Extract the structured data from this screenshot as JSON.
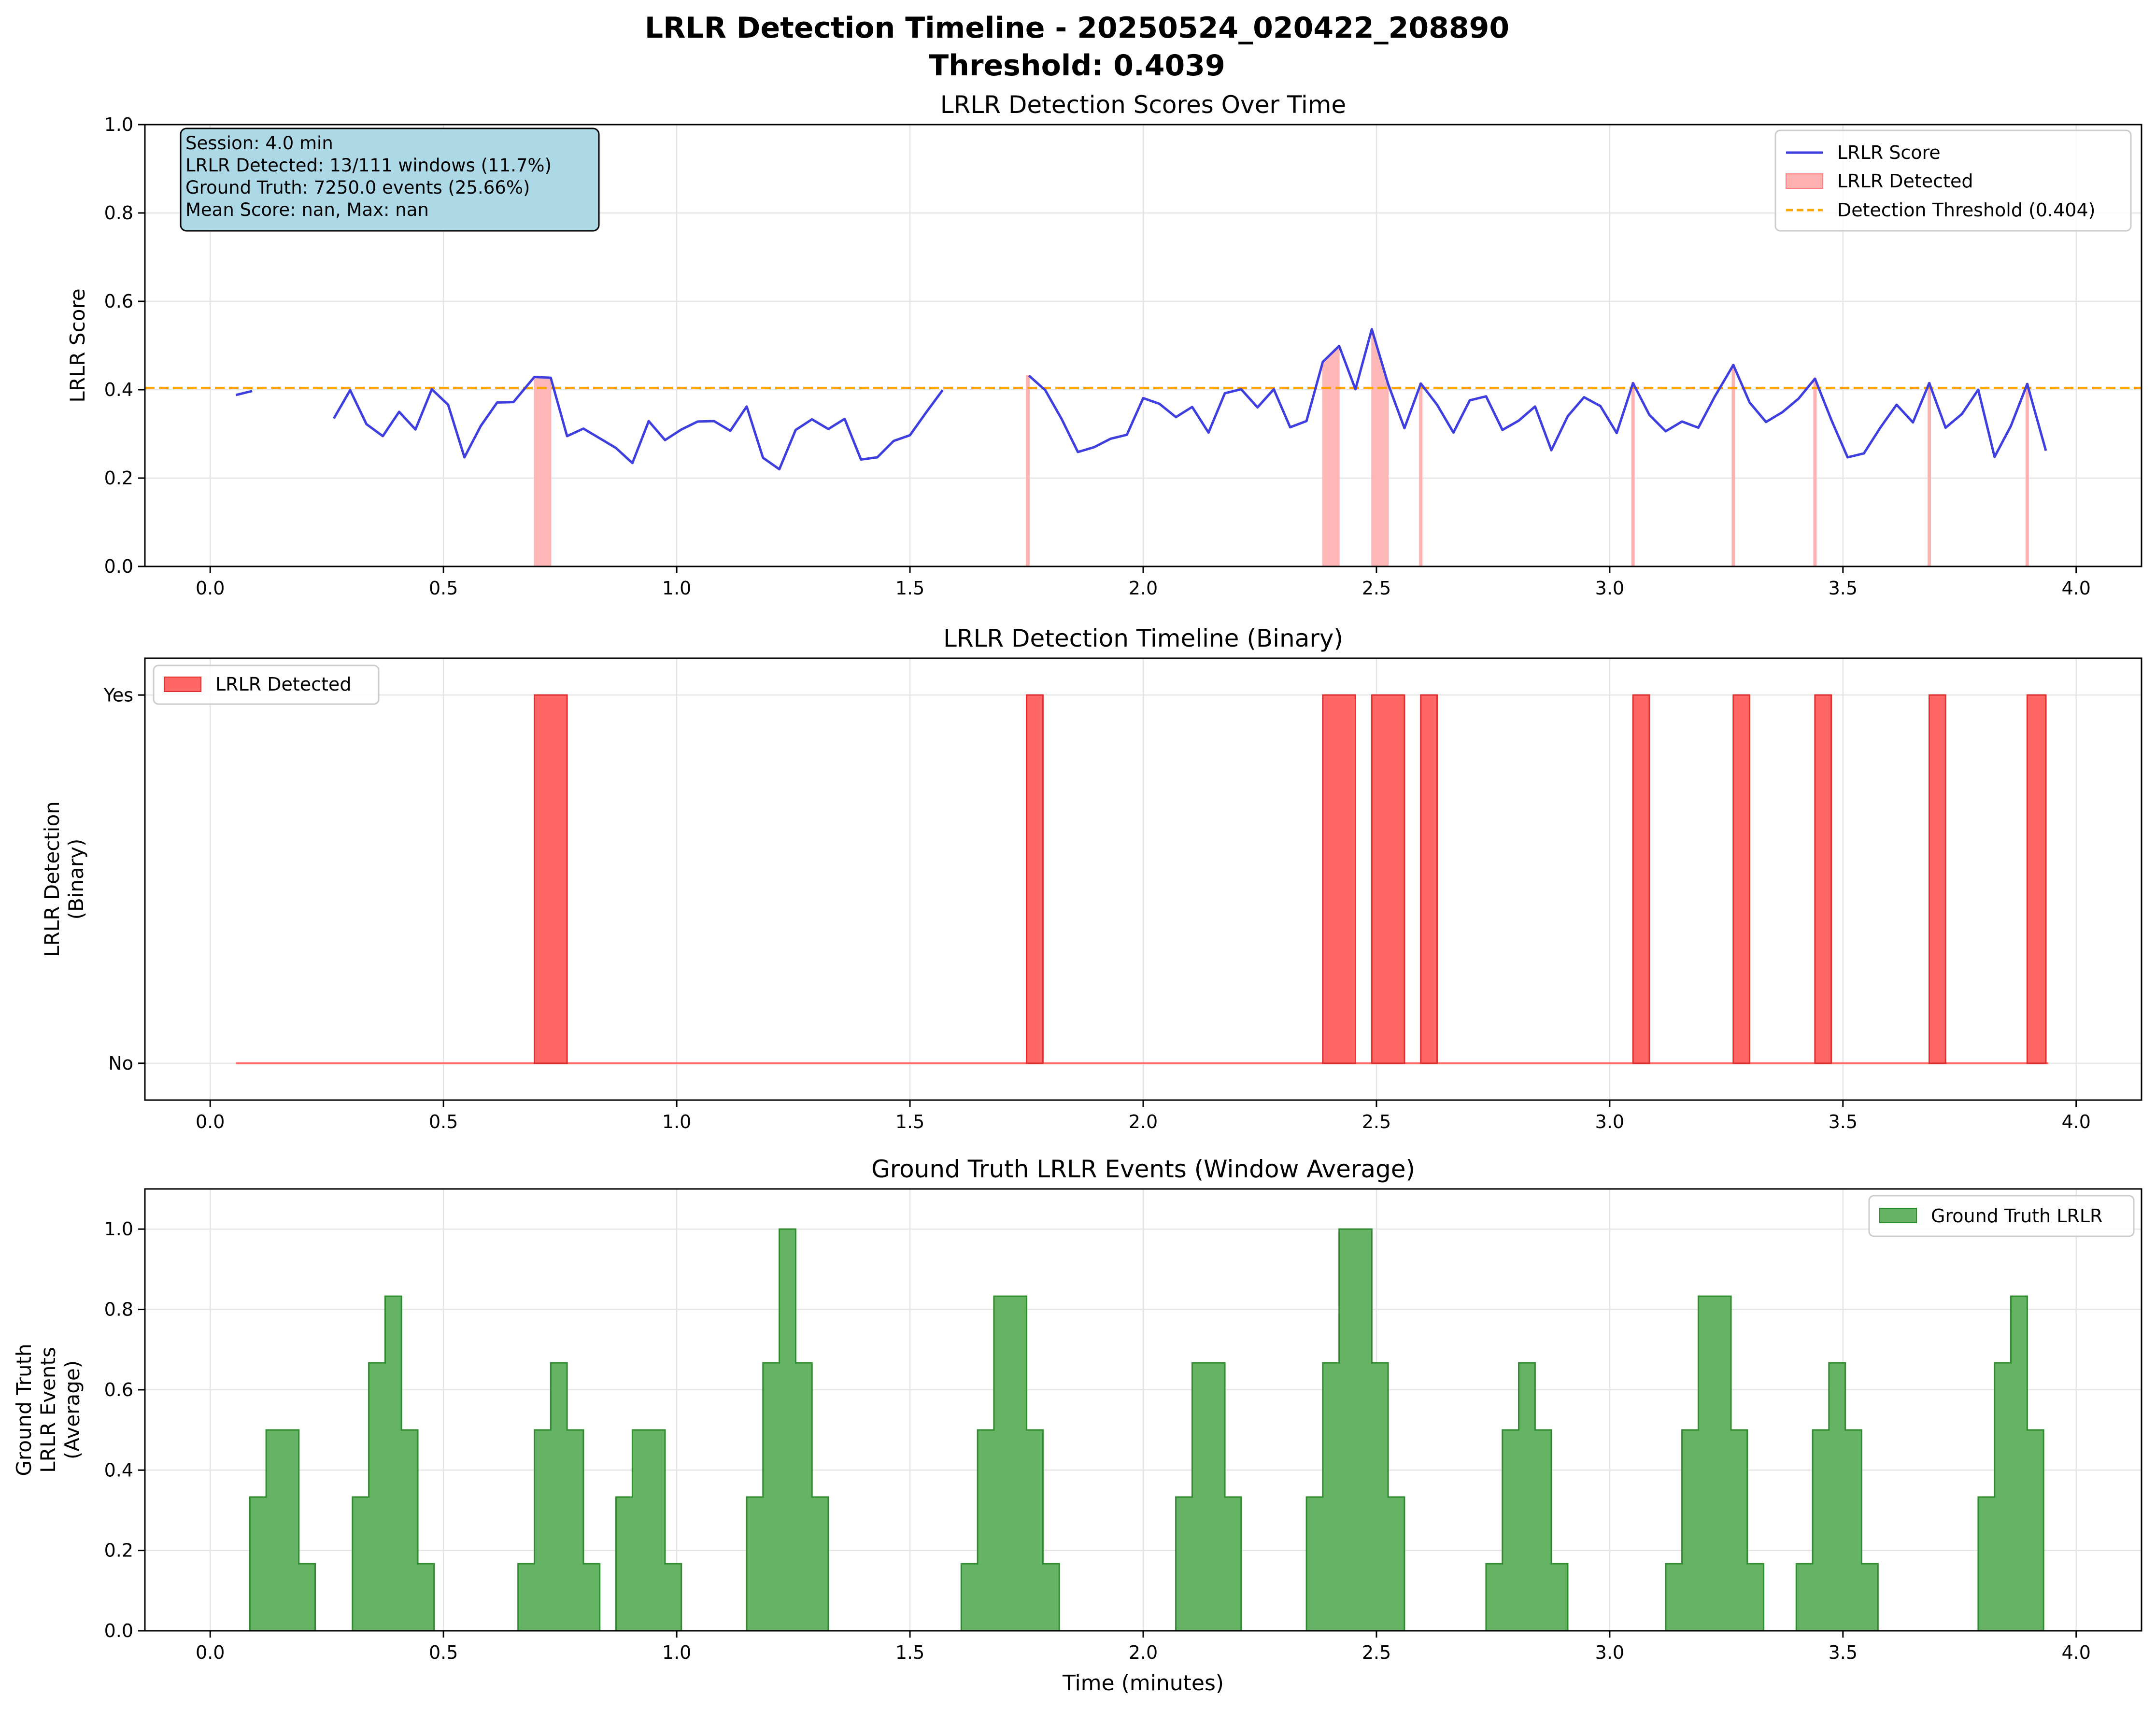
{
  "figure": {
    "title_line1": "LRLR Detection Timeline - 20250524_020422_208890",
    "title_line2": "Threshold: 0.4039"
  },
  "colors": {
    "score_line": "#3f3fe0",
    "detected_fill": "#ff6666",
    "detected_light": "#ffb0b0",
    "threshold": "#ffa500",
    "ground_truth": "#66b366",
    "ground_truth_edge": "#2e8b2e",
    "info_box": "#add8e6",
    "grid": "#e5e5e5"
  },
  "chart_data": [
    {
      "type": "line",
      "title": "LRLR Detection Scores Over Time",
      "xlabel": "",
      "ylabel": "LRLR Score",
      "xlim": [
        -0.14,
        4.14
      ],
      "ylim": [
        0,
        1.0
      ],
      "xticks": [
        0.0,
        0.5,
        1.0,
        1.5,
        2.0,
        2.5,
        3.0,
        3.5,
        4.0
      ],
      "xtick_labels": [
        "0.0",
        "0.5",
        "1.0",
        "1.5",
        "2.0",
        "2.5",
        "3.0",
        "3.5",
        "4.0"
      ],
      "yticks": [
        0.0,
        0.2,
        0.4,
        0.6,
        0.8,
        1.0
      ],
      "ytick_labels": [
        "0.0",
        "0.2",
        "0.4",
        "0.6",
        "0.8",
        "1.0"
      ],
      "grid": true,
      "legend_position": "top-right",
      "threshold": 0.404,
      "info_box": [
        "Session: 4.0 min",
        "LRLR Detected: 13/111 windows (11.7%)",
        "Ground Truth: 7250.0 events (25.66%)",
        "Mean Score: nan, Max: nan"
      ],
      "legend": [
        "LRLR Score",
        "LRLR Detected",
        "Detection Threshold (0.404)"
      ],
      "segments": [
        [
          [
            0.055,
            0.388
          ],
          [
            0.09,
            0.397
          ]
        ],
        [
          [
            0.265,
            0.335
          ],
          [
            0.3,
            0.399
          ],
          [
            0.335,
            0.322
          ],
          [
            0.37,
            0.295
          ],
          [
            0.405,
            0.35
          ],
          [
            0.44,
            0.31
          ],
          [
            0.475,
            0.401
          ],
          [
            0.51,
            0.366
          ],
          [
            0.545,
            0.247
          ],
          [
            0.58,
            0.318
          ],
          [
            0.615,
            0.371
          ],
          [
            0.65,
            0.372
          ],
          [
            0.695,
            0.429
          ],
          [
            0.73,
            0.427
          ],
          [
            0.765,
            0.295
          ],
          [
            0.8,
            0.312
          ],
          [
            0.835,
            0.29
          ],
          [
            0.87,
            0.268
          ],
          [
            0.905,
            0.234
          ],
          [
            0.94,
            0.329
          ],
          [
            0.975,
            0.286
          ],
          [
            1.01,
            0.31
          ],
          [
            1.045,
            0.328
          ],
          [
            1.08,
            0.329
          ],
          [
            1.115,
            0.307
          ],
          [
            1.15,
            0.362
          ],
          [
            1.185,
            0.246
          ],
          [
            1.22,
            0.22
          ],
          [
            1.255,
            0.309
          ],
          [
            1.29,
            0.333
          ],
          [
            1.325,
            0.311
          ],
          [
            1.36,
            0.334
          ],
          [
            1.395,
            0.242
          ],
          [
            1.43,
            0.247
          ],
          [
            1.465,
            0.284
          ],
          [
            1.5,
            0.297
          ],
          [
            1.535,
            0.349
          ],
          [
            1.57,
            0.399
          ]
        ],
        [
          [
            1.755,
            0.432
          ],
          [
            1.79,
            0.399
          ],
          [
            1.825,
            0.334
          ],
          [
            1.86,
            0.259
          ],
          [
            1.895,
            0.27
          ],
          [
            1.93,
            0.289
          ],
          [
            1.965,
            0.298
          ],
          [
            2.0,
            0.381
          ],
          [
            2.035,
            0.368
          ],
          [
            2.07,
            0.338
          ],
          [
            2.105,
            0.361
          ],
          [
            2.14,
            0.303
          ],
          [
            2.175,
            0.392
          ],
          [
            2.21,
            0.401
          ],
          [
            2.245,
            0.36
          ],
          [
            2.28,
            0.401
          ],
          [
            2.315,
            0.315
          ],
          [
            2.35,
            0.329
          ],
          [
            2.385,
            0.463
          ],
          [
            2.42,
            0.499
          ],
          [
            2.455,
            0.401
          ],
          [
            2.49,
            0.537
          ],
          [
            2.525,
            0.413
          ],
          [
            2.56,
            0.313
          ],
          [
            2.595,
            0.414
          ],
          [
            2.63,
            0.366
          ],
          [
            2.665,
            0.303
          ],
          [
            2.7,
            0.376
          ],
          [
            2.735,
            0.385
          ],
          [
            2.77,
            0.309
          ],
          [
            2.805,
            0.33
          ],
          [
            2.84,
            0.362
          ],
          [
            2.875,
            0.263
          ],
          [
            2.91,
            0.34
          ],
          [
            2.945,
            0.383
          ],
          [
            2.98,
            0.363
          ],
          [
            3.015,
            0.302
          ],
          [
            3.05,
            0.415
          ],
          [
            3.085,
            0.343
          ],
          [
            3.12,
            0.306
          ],
          [
            3.155,
            0.328
          ],
          [
            3.19,
            0.314
          ],
          [
            3.225,
            0.384
          ],
          [
            3.265,
            0.456
          ],
          [
            3.3,
            0.371
          ],
          [
            3.335,
            0.327
          ],
          [
            3.37,
            0.349
          ],
          [
            3.405,
            0.38
          ],
          [
            3.44,
            0.425
          ],
          [
            3.475,
            0.332
          ],
          [
            3.51,
            0.247
          ],
          [
            3.545,
            0.256
          ],
          [
            3.58,
            0.314
          ],
          [
            3.615,
            0.366
          ],
          [
            3.65,
            0.326
          ],
          [
            3.685,
            0.415
          ],
          [
            3.72,
            0.314
          ],
          [
            3.755,
            0.345
          ],
          [
            3.79,
            0.4
          ],
          [
            3.825,
            0.248
          ],
          [
            3.86,
            0.318
          ],
          [
            3.895,
            0.413
          ],
          [
            3.935,
            0.262
          ]
        ]
      ],
      "detected_regions": [
        {
          "x0": 0.695,
          "x1": 0.73,
          "y0": 0.429,
          "y1": 0.427
        },
        {
          "x0": 1.75,
          "x1": 1.755,
          "y0": 0.432,
          "y1": 0.432
        },
        {
          "x0": 2.385,
          "x1": 2.42,
          "y0": 0.463,
          "y1": 0.499
        },
        {
          "x0": 2.49,
          "x1": 2.525,
          "y0": 0.537,
          "y1": 0.413
        },
        {
          "x0": 2.593,
          "x1": 2.597,
          "y0": 0.414,
          "y1": 0.414
        },
        {
          "x0": 3.048,
          "x1": 3.052,
          "y0": 0.415,
          "y1": 0.415
        },
        {
          "x0": 3.263,
          "x1": 3.267,
          "y0": 0.456,
          "y1": 0.456
        },
        {
          "x0": 3.438,
          "x1": 3.442,
          "y0": 0.425,
          "y1": 0.425
        },
        {
          "x0": 3.683,
          "x1": 3.687,
          "y0": 0.415,
          "y1": 0.415
        },
        {
          "x0": 3.893,
          "x1": 3.897,
          "y0": 0.413,
          "y1": 0.413
        }
      ]
    },
    {
      "type": "bar",
      "title": "LRLR Detection Timeline (Binary)",
      "xlabel": "",
      "ylabel_line1": "LRLR Detection",
      "ylabel_line2": "(Binary)",
      "xlim": [
        -0.14,
        4.14
      ],
      "ylim": [
        -0.1,
        1.1
      ],
      "xticks": [
        0.0,
        0.5,
        1.0,
        1.5,
        2.0,
        2.5,
        3.0,
        3.5,
        4.0
      ],
      "xtick_labels": [
        "0.0",
        "0.5",
        "1.0",
        "1.5",
        "2.0",
        "2.5",
        "3.0",
        "3.5",
        "4.0"
      ],
      "yticks": [
        0,
        1
      ],
      "ytick_labels": [
        "No",
        "Yes"
      ],
      "grid": true,
      "legend_position": "top-left",
      "legend": [
        "LRLR Detected"
      ],
      "baseline_range": [
        0.055,
        3.94
      ],
      "detections": [
        [
          0.695,
          0.765
        ],
        [
          1.75,
          1.785
        ],
        [
          2.385,
          2.455
        ],
        [
          2.49,
          2.56
        ],
        [
          2.595,
          2.63
        ],
        [
          3.05,
          3.085
        ],
        [
          3.265,
          3.3
        ],
        [
          3.44,
          3.475
        ],
        [
          3.685,
          3.72
        ],
        [
          3.895,
          3.935
        ]
      ]
    },
    {
      "type": "area",
      "title": "Ground Truth LRLR Events (Window Average)",
      "xlabel": "Time (minutes)",
      "ylabel_line1": "Ground Truth",
      "ylabel_line2": "LRLR Events",
      "ylabel_line3": "(Average)",
      "xlim": [
        -0.14,
        4.14
      ],
      "ylim": [
        0,
        1.1
      ],
      "xticks": [
        0.0,
        0.5,
        1.0,
        1.5,
        2.0,
        2.5,
        3.0,
        3.5,
        4.0
      ],
      "xtick_labels": [
        "0.0",
        "0.5",
        "1.0",
        "1.5",
        "2.0",
        "2.5",
        "3.0",
        "3.5",
        "4.0"
      ],
      "yticks": [
        0.0,
        0.2,
        0.4,
        0.6,
        0.8,
        1.0
      ],
      "ytick_labels": [
        "0.0",
        "0.2",
        "0.4",
        "0.6",
        "0.8",
        "1.0"
      ],
      "grid": true,
      "legend_position": "top-right",
      "legend": [
        "Ground Truth LRLR"
      ],
      "steps": [
        [
          0.085,
          0.0
        ],
        [
          0.085,
          0.333
        ],
        [
          0.12,
          0.333
        ],
        [
          0.12,
          0.5
        ],
        [
          0.19,
          0.5
        ],
        [
          0.19,
          0.167
        ],
        [
          0.225,
          0.167
        ],
        [
          0.225,
          0.0
        ],
        [
          0.305,
          0.0
        ],
        [
          0.305,
          0.333
        ],
        [
          0.34,
          0.333
        ],
        [
          0.34,
          0.667
        ],
        [
          0.375,
          0.667
        ],
        [
          0.375,
          0.833
        ],
        [
          0.41,
          0.833
        ],
        [
          0.41,
          0.5
        ],
        [
          0.445,
          0.5
        ],
        [
          0.445,
          0.167
        ],
        [
          0.48,
          0.167
        ],
        [
          0.48,
          0.0
        ],
        [
          0.66,
          0.0
        ],
        [
          0.66,
          0.167
        ],
        [
          0.695,
          0.167
        ],
        [
          0.695,
          0.5
        ],
        [
          0.73,
          0.5
        ],
        [
          0.73,
          0.667
        ],
        [
          0.765,
          0.667
        ],
        [
          0.765,
          0.5
        ],
        [
          0.8,
          0.5
        ],
        [
          0.8,
          0.167
        ],
        [
          0.835,
          0.167
        ],
        [
          0.835,
          0.0
        ],
        [
          0.87,
          0.0
        ],
        [
          0.87,
          0.333
        ],
        [
          0.905,
          0.333
        ],
        [
          0.905,
          0.5
        ],
        [
          0.975,
          0.5
        ],
        [
          0.975,
          0.167
        ],
        [
          1.01,
          0.167
        ],
        [
          1.01,
          0.0
        ],
        [
          1.15,
          0.0
        ],
        [
          1.15,
          0.333
        ],
        [
          1.185,
          0.333
        ],
        [
          1.185,
          0.667
        ],
        [
          1.22,
          0.667
        ],
        [
          1.22,
          1.0
        ],
        [
          1.255,
          1.0
        ],
        [
          1.255,
          0.667
        ],
        [
          1.29,
          0.667
        ],
        [
          1.29,
          0.333
        ],
        [
          1.325,
          0.333
        ],
        [
          1.325,
          0.0
        ],
        [
          1.61,
          0.0
        ],
        [
          1.61,
          0.167
        ],
        [
          1.645,
          0.167
        ],
        [
          1.645,
          0.5
        ],
        [
          1.68,
          0.5
        ],
        [
          1.68,
          0.833
        ],
        [
          1.75,
          0.833
        ],
        [
          1.75,
          0.5
        ],
        [
          1.785,
          0.5
        ],
        [
          1.785,
          0.167
        ],
        [
          1.82,
          0.167
        ],
        [
          1.82,
          0.0
        ],
        [
          2.07,
          0.0
        ],
        [
          2.07,
          0.333
        ],
        [
          2.105,
          0.333
        ],
        [
          2.105,
          0.667
        ],
        [
          2.175,
          0.667
        ],
        [
          2.175,
          0.333
        ],
        [
          2.21,
          0.333
        ],
        [
          2.21,
          0.0
        ],
        [
          2.35,
          0.0
        ],
        [
          2.35,
          0.333
        ],
        [
          2.385,
          0.333
        ],
        [
          2.385,
          0.667
        ],
        [
          2.42,
          0.667
        ],
        [
          2.42,
          1.0
        ],
        [
          2.49,
          1.0
        ],
        [
          2.49,
          0.667
        ],
        [
          2.525,
          0.667
        ],
        [
          2.525,
          0.333
        ],
        [
          2.56,
          0.333
        ],
        [
          2.56,
          0.0
        ],
        [
          2.735,
          0.0
        ],
        [
          2.735,
          0.167
        ],
        [
          2.77,
          0.167
        ],
        [
          2.77,
          0.5
        ],
        [
          2.805,
          0.5
        ],
        [
          2.805,
          0.667
        ],
        [
          2.84,
          0.667
        ],
        [
          2.84,
          0.5
        ],
        [
          2.875,
          0.5
        ],
        [
          2.875,
          0.167
        ],
        [
          2.91,
          0.167
        ],
        [
          2.91,
          0.0
        ],
        [
          3.12,
          0.0
        ],
        [
          3.12,
          0.167
        ],
        [
          3.155,
          0.167
        ],
        [
          3.155,
          0.5
        ],
        [
          3.19,
          0.5
        ],
        [
          3.19,
          0.833
        ],
        [
          3.26,
          0.833
        ],
        [
          3.26,
          0.5
        ],
        [
          3.295,
          0.5
        ],
        [
          3.295,
          0.167
        ],
        [
          3.33,
          0.167
        ],
        [
          3.33,
          0.0
        ],
        [
          3.4,
          0.0
        ],
        [
          3.4,
          0.167
        ],
        [
          3.435,
          0.167
        ],
        [
          3.435,
          0.5
        ],
        [
          3.47,
          0.5
        ],
        [
          3.47,
          0.667
        ],
        [
          3.505,
          0.667
        ],
        [
          3.505,
          0.5
        ],
        [
          3.54,
          0.5
        ],
        [
          3.54,
          0.167
        ],
        [
          3.575,
          0.167
        ],
        [
          3.575,
          0.0
        ],
        [
          3.79,
          0.0
        ],
        [
          3.79,
          0.333
        ],
        [
          3.825,
          0.333
        ],
        [
          3.825,
          0.667
        ],
        [
          3.86,
          0.667
        ],
        [
          3.86,
          0.833
        ],
        [
          3.895,
          0.833
        ],
        [
          3.895,
          0.5
        ],
        [
          3.93,
          0.5
        ],
        [
          3.93,
          0.0
        ]
      ]
    }
  ]
}
